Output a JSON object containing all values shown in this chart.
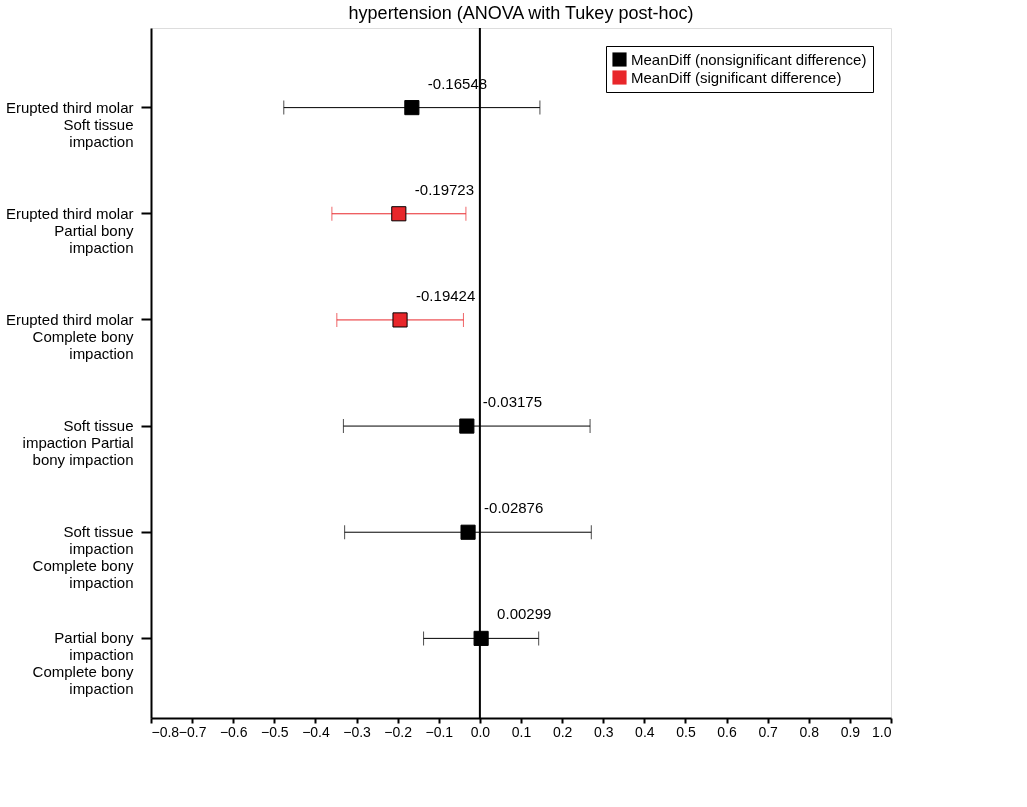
{
  "chart_data": {
    "type": "scatter",
    "orientation": "horizontal",
    "title": "hypertension (ANOVA with Tukey post-hoc)",
    "categories": [
      "Erupted third molar\nSoft tissue\nimpaction",
      "Erupted third molar\nPartial bony\nimpaction",
      "Erupted third molar\nComplete bony\nimpaction",
      "Soft tissue\nimpaction  Partial\nbony impaction",
      "Soft tissue\nimpaction\nComplete bony\nimpaction",
      "Partial bony\nimpaction\nComplete bony\nimpaction"
    ],
    "series": [
      {
        "name": "MeanDiff (nonsignificant difference)",
        "color": "#000000",
        "values": [
          -0.16548,
          null,
          null,
          -0.03175,
          -0.02876,
          0.00299
        ],
        "errors": [
          [
            -0.477,
            0.146
          ],
          null,
          null,
          [
            -0.332,
            0.268
          ],
          [
            -0.329,
            0.271
          ],
          [
            -0.137,
            0.143
          ]
        ]
      },
      {
        "name": "MeanDiff (significant difference)",
        "color": "#e8262a",
        "values": [
          null,
          -0.19723,
          -0.19424,
          null,
          null,
          null
        ],
        "errors": [
          null,
          [
            -0.36,
            -0.034
          ],
          [
            -0.348,
            -0.04
          ],
          null,
          null,
          null
        ]
      }
    ],
    "data_labels": true,
    "marker": "square",
    "legend": "top right",
    "grid": false,
    "xlim": [
      -0.8,
      1.0
    ],
    "xticks": [
      {
        "value": -0.8,
        "label": "−0.8"
      },
      {
        "value": -0.7,
        "label": "−0.7"
      },
      {
        "value": -0.6,
        "label": "−0.6"
      },
      {
        "value": -0.5,
        "label": "−0.5"
      },
      {
        "value": -0.4,
        "label": "−0.4"
      },
      {
        "value": -0.3,
        "label": "−0.3"
      },
      {
        "value": -0.2,
        "label": "−0.2"
      },
      {
        "value": -0.1,
        "label": "−0.1"
      },
      {
        "value": 0,
        "label": "0.0"
      },
      {
        "value": 0.1,
        "label": "0.1"
      },
      {
        "value": 0.2,
        "label": "0.2"
      },
      {
        "value": 0.3,
        "label": "0.3"
      },
      {
        "value": 0.4,
        "label": "0.4"
      },
      {
        "value": 0.5,
        "label": "0.5"
      },
      {
        "value": 0.6,
        "label": "0.6"
      },
      {
        "value": 0.7,
        "label": "0.7"
      },
      {
        "value": 0.8,
        "label": "0.8"
      },
      {
        "value": 0.9,
        "label": "0.9"
      },
      {
        "value": 1.0,
        "label": "1.0"
      }
    ],
    "ref_lines": [
      {
        "axis": "x",
        "value": 0,
        "color": "#000000"
      }
    ]
  }
}
